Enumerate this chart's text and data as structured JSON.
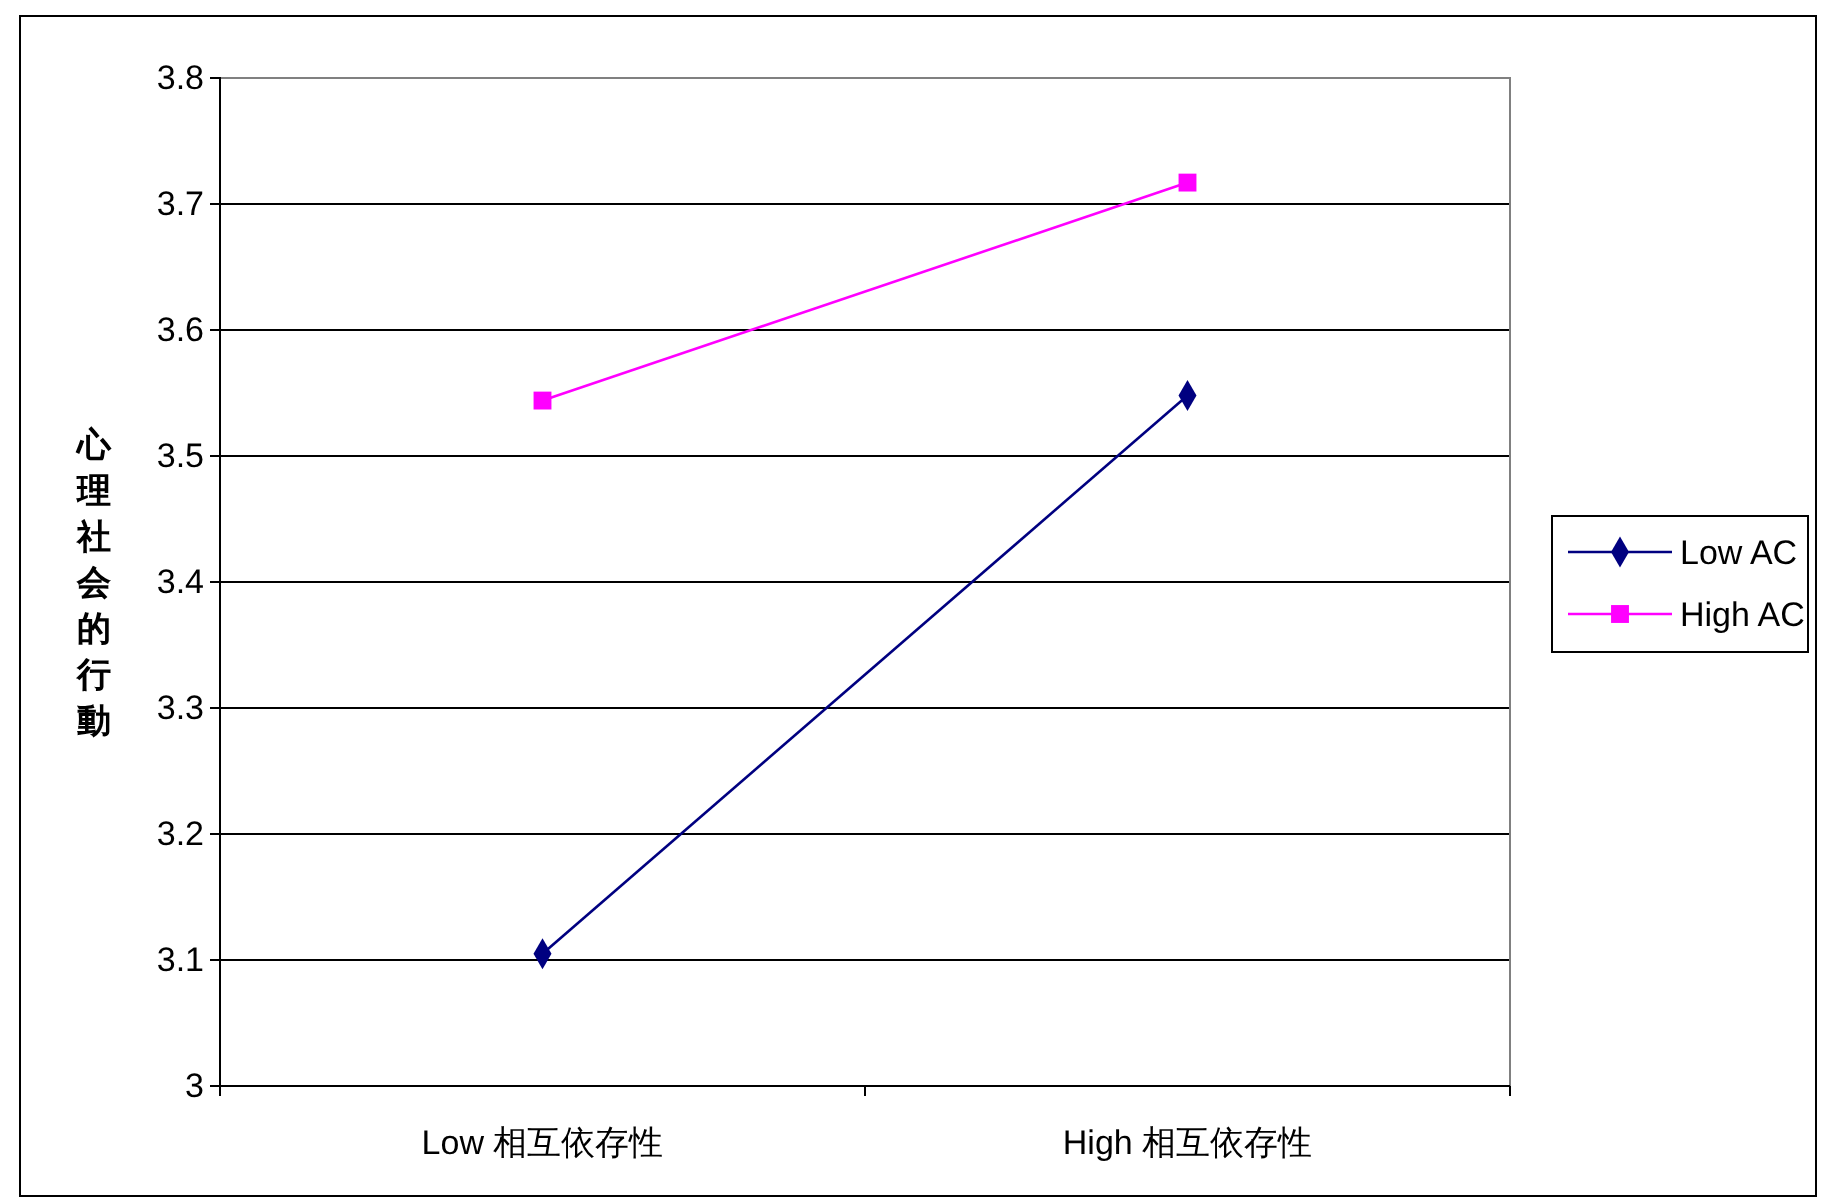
{
  "chart_data": {
    "type": "line",
    "ylabel": "心理社会的行動",
    "categories": [
      "Low 相互依存性",
      "High 相互依存性"
    ],
    "series": [
      {
        "name": "Low AC",
        "color": "#000080",
        "values": [
          3.105,
          3.548
        ],
        "marker": "diamond"
      },
      {
        "name": "High AC",
        "color": "#ff00ff",
        "values": [
          3.544,
          3.717
        ],
        "marker": "square"
      }
    ],
    "ylim": [
      3,
      3.8
    ],
    "yticks": [
      3,
      {
        "value": 3.1,
        "label": "3.1"
      },
      {
        "value": 3.2,
        "label": "3.2"
      },
      {
        "value": 3.3,
        "label": "3.3"
      },
      {
        "value": 3.4,
        "label": "3.4"
      },
      {
        "value": 3.5,
        "label": "3.5"
      },
      {
        "value": 3.6,
        "label": "3.6"
      },
      {
        "value": 3.7,
        "label": "3.7"
      },
      {
        "value": 3.8,
        "label": "3.8"
      }
    ],
    "grid": "y",
    "legend": "right"
  }
}
